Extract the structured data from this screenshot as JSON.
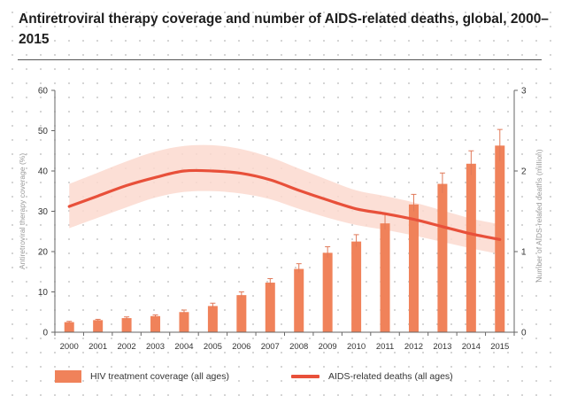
{
  "title": "Antiretroviral therapy coverage and number of AIDS-related deaths, global, 2000–2015",
  "colors": {
    "bar": "#f0825a",
    "line": "#e8503a",
    "band": "#fbd9cf",
    "axis": "#666666",
    "errorbar": "#e07a5a"
  },
  "legend": {
    "bars": "HIV treatment coverage (all ages)",
    "line": "AIDS-related deaths (all ages)"
  },
  "chart_data": {
    "type": "bar",
    "title": "Antiretroviral therapy coverage and number of AIDS-related deaths, global, 2000–2015",
    "categories": [
      "2000",
      "2001",
      "2002",
      "2003",
      "2004",
      "2005",
      "2006",
      "2007",
      "2008",
      "2009",
      "2010",
      "2011",
      "2012",
      "2013",
      "2014",
      "2015"
    ],
    "ylabel": "Antiretroviral therapy coverage (%)",
    "y2label": "Number of AIDS-related deaths (million)",
    "ylim": [
      0,
      60
    ],
    "y2lim": [
      0,
      3
    ],
    "yticks": [
      0,
      10,
      20,
      30,
      40,
      50,
      60
    ],
    "y2ticks": [
      0,
      1,
      2,
      3
    ],
    "grid": false,
    "legend_position": "bottom",
    "series": [
      {
        "name": "HIV treatment coverage (all ages)",
        "type": "bar",
        "axis": "left",
        "values": [
          2.5,
          3,
          3.5,
          4,
          5,
          6.5,
          9.2,
          12.3,
          15.7,
          19.7,
          22.5,
          27,
          31.7,
          36.8,
          41.8,
          46.3
        ],
        "error_low": [
          2.3,
          2.8,
          3.2,
          3.8,
          4.7,
          6.2,
          8.7,
          11.5,
          14.8,
          18.5,
          21.2,
          25.5,
          30,
          34.5,
          39,
          42.5
        ],
        "error_high": [
          2.7,
          3.2,
          3.8,
          4.3,
          5.5,
          7.2,
          10,
          13.3,
          17,
          21.2,
          24.2,
          29.2,
          34.2,
          39.5,
          45,
          50.3
        ]
      },
      {
        "name": "AIDS-related deaths (all ages)",
        "type": "line",
        "axis": "right",
        "values": [
          1.56,
          1.69,
          1.82,
          1.92,
          2.0,
          2.0,
          1.97,
          1.89,
          1.76,
          1.64,
          1.53,
          1.47,
          1.4,
          1.31,
          1.22,
          1.15
        ],
        "band_low": [
          1.29,
          1.42,
          1.55,
          1.67,
          1.74,
          1.75,
          1.72,
          1.65,
          1.53,
          1.42,
          1.33,
          1.27,
          1.2,
          1.12,
          1.04,
          0.97
        ],
        "band_high": [
          1.84,
          1.98,
          2.12,
          2.24,
          2.31,
          2.32,
          2.27,
          2.17,
          2.03,
          1.89,
          1.76,
          1.69,
          1.61,
          1.51,
          1.41,
          1.34
        ]
      }
    ]
  }
}
